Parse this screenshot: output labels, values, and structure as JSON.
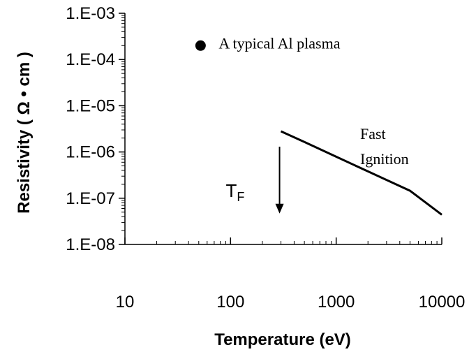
{
  "chart_data": {
    "type": "line",
    "title": "",
    "xlabel": "Temperature (eV)",
    "ylabel": "Resistivity ( Ω • cm )",
    "xscale": "log",
    "yscale": "log",
    "xlim": [
      10,
      10000
    ],
    "ylim": [
      1e-08,
      0.001
    ],
    "x_tick_labels": [
      "10",
      "100",
      "1000",
      "10000"
    ],
    "y_tick_labels": [
      "1.E-08",
      "1.E-07",
      "1.E-06",
      "1.E-05",
      "1.E-04",
      "1.E-03"
    ],
    "grid": false,
    "series": [
      {
        "name": "",
        "x": [
          300,
          500,
          1000,
          2000,
          5000,
          10000
        ],
        "y": [
          2.8e-06,
          1.65e-06,
          7.9e-07,
          3.8e-07,
          1.45e-07,
          4.4e-08
        ]
      }
    ],
    "point": {
      "label": "A typical Al plasma",
      "x": 52,
      "y": 0.0002
    },
    "annotations": {
      "fast_ignition_line1": "Fast",
      "fast_ignition_line2": "Ignition",
      "tf_main": "T",
      "tf_sub": "F"
    },
    "tf_arrow": {
      "x": 300,
      "y_from": 1.3e-06,
      "y_to": 5e-08
    }
  }
}
